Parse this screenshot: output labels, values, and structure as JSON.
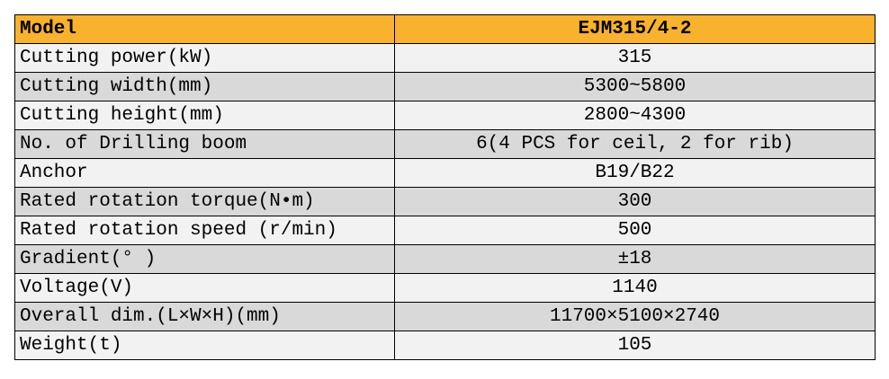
{
  "table": {
    "header": [
      "Model",
      "EJM315/4-2"
    ],
    "rows": [
      [
        "Cutting power(kW)",
        "315"
      ],
      [
        "Cutting width(mm)",
        "5300~5800"
      ],
      [
        "Cutting height(mm)",
        "2800~4300"
      ],
      [
        "No. of Drilling boom",
        "6(4 PCS for ceil, 2 for rib)"
      ],
      [
        "Anchor",
        "B19/B22"
      ],
      [
        "Rated rotation torque(N•m)",
        "300"
      ],
      [
        "Rated rotation speed (r/min)",
        "500"
      ],
      [
        "Gradient(° )",
        "±18"
      ],
      [
        "Voltage(V)",
        "1140"
      ],
      [
        "Overall dim.(L×W×H)(mm)",
        "11700×5100×2740"
      ],
      [
        "Weight(t)",
        "105"
      ]
    ]
  }
}
